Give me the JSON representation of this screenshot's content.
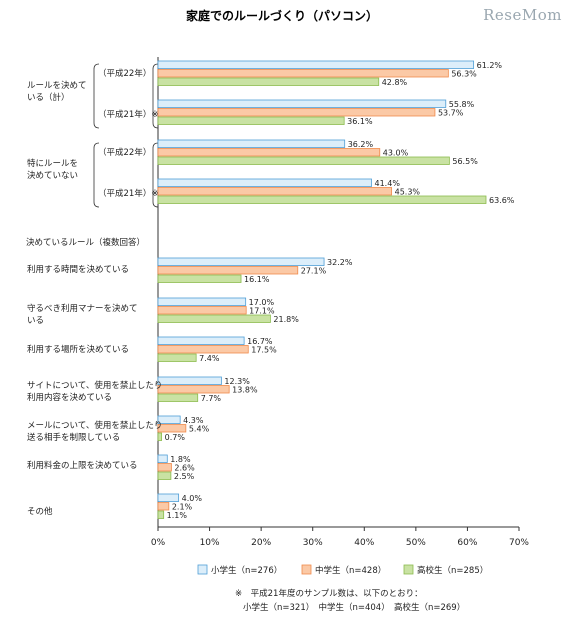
{
  "chart_data": {
    "type": "bar",
    "orientation": "horizontal",
    "title": "家庭でのルールづくり（パソコン）",
    "watermark": "ReseMom",
    "xlim": [
      0,
      70
    ],
    "xticks": [
      "0%",
      "10%",
      "20%",
      "30%",
      "40%",
      "50%",
      "60%",
      "70%"
    ],
    "grid": false,
    "legend_position": "bottom",
    "series": [
      {
        "name": "小学生（n=276）",
        "color": "#4f9ed6",
        "fill": "#dceefa"
      },
      {
        "name": "中学生（n=428）",
        "color": "#f08a4b",
        "fill": "#fbc9a6"
      },
      {
        "name": "高校生（n=285）",
        "color": "#8cbc4e",
        "fill": "#c9e2a3"
      }
    ],
    "groups": [
      {
        "label": "ルールを決めている（計）",
        "label_lines": [
          "ルールを決めて",
          "いる（計）"
        ],
        "sub_label": "（平成22年）",
        "values": [
          61.2,
          56.3,
          42.8
        ],
        "value_labels": [
          "61.2%",
          "56.3%",
          "42.8%"
        ]
      },
      {
        "label": "ルールを決めている（計）",
        "sub_label": "（平成21年）※",
        "values": [
          55.8,
          53.7,
          36.1
        ],
        "value_labels": [
          "55.8%",
          "53.7%",
          "36.1%"
        ]
      },
      {
        "label": "特にルールを決めていない",
        "label_lines": [
          "特にルールを",
          "決めていない"
        ],
        "sub_label": "（平成22年）",
        "values": [
          36.2,
          43.0,
          56.5
        ],
        "value_labels": [
          "36.2%",
          "43.0%",
          "56.5%"
        ]
      },
      {
        "label": "特にルールを決めていない",
        "sub_label": "（平成21年）※",
        "values": [
          41.4,
          45.3,
          63.6
        ],
        "value_labels": [
          "41.4%",
          "45.3%",
          "63.6%"
        ]
      },
      {
        "label": "利用する時間を決めている",
        "label_lines": [
          "利用する時間を決めている"
        ],
        "values": [
          32.2,
          27.1,
          16.1
        ],
        "value_labels": [
          "32.2%",
          "27.1%",
          "16.1%"
        ]
      },
      {
        "label": "守るべき利用マナーを決めている",
        "label_lines": [
          "守るべき利用マナーを決めて",
          "いる"
        ],
        "values": [
          17.0,
          17.1,
          21.8
        ],
        "value_labels": [
          "17.0%",
          "17.1%",
          "21.8%"
        ]
      },
      {
        "label": "利用する場所を決めている",
        "label_lines": [
          "利用する場所を決めている"
        ],
        "values": [
          16.7,
          17.5,
          7.4
        ],
        "value_labels": [
          "16.7%",
          "17.5%",
          "7.4%"
        ]
      },
      {
        "label": "サイトについて、使用を禁止したり利用内容を決めている",
        "label_lines": [
          "サイトについて、使用を禁止したり",
          "利用内容を決めている"
        ],
        "values": [
          12.3,
          13.8,
          7.7
        ],
        "value_labels": [
          "12.3%",
          "13.8%",
          "7.7%"
        ]
      },
      {
        "label": "メールについて、使用を禁止したり送る相手を制限している",
        "label_lines": [
          "メールについて、使用を禁止したり",
          "送る相手を制限している"
        ],
        "values": [
          4.3,
          5.4,
          0.7
        ],
        "value_labels": [
          "4.3%",
          "5.4%",
          "0.7%"
        ]
      },
      {
        "label": "利用料金の上限を決めている",
        "label_lines": [
          "利用料金の上限を決めている"
        ],
        "values": [
          1.8,
          2.6,
          2.5
        ],
        "value_labels": [
          "1.8%",
          "2.6%",
          "2.5%"
        ]
      },
      {
        "label": "その他",
        "label_lines": [
          "その他"
        ],
        "values": [
          4.0,
          2.1,
          1.1
        ],
        "value_labels": [
          "4.0%",
          "2.1%",
          "1.1%"
        ]
      }
    ],
    "section_heading": "決めているルール（複数回答）",
    "note": {
      "line1": "※　平成21年度のサンプル数は、以下のとおり：",
      "line2": "小学生（n=321）　中学生（n=404）　高校生（n=269）"
    }
  }
}
